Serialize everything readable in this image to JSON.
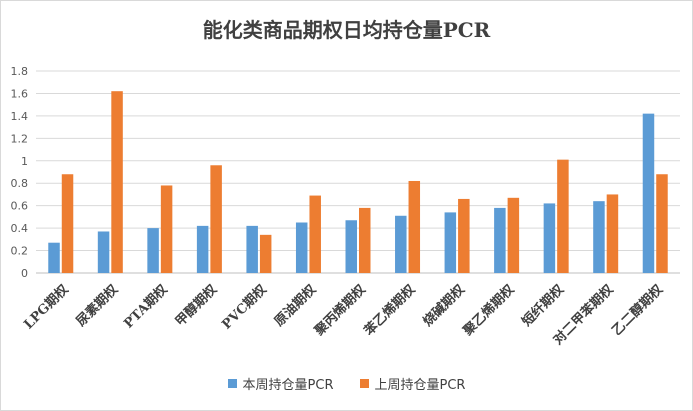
{
  "chart_data": {
    "type": "bar",
    "title": "能化类商品期权日均持仓量PCR",
    "categories": [
      "LPG期权",
      "尿素期权",
      "PTA期权",
      "甲醇期权",
      "PVC期权",
      "原油期权",
      "聚丙烯期权",
      "苯乙烯期权",
      "烧碱期权",
      "聚乙烯期权",
      "短纤期权",
      "对二甲苯期权",
      "乙二醇期权"
    ],
    "series": [
      {
        "name": "本周持仓量PCR",
        "color": "#5b9bd5",
        "values": [
          0.27,
          0.37,
          0.4,
          0.42,
          0.42,
          0.45,
          0.47,
          0.51,
          0.54,
          0.58,
          0.62,
          0.64,
          1.42
        ]
      },
      {
        "name": "上周持仓量PCR",
        "color": "#ed7d31",
        "values": [
          0.88,
          1.62,
          0.78,
          0.96,
          0.34,
          0.69,
          0.58,
          0.82,
          0.66,
          0.67,
          1.01,
          0.7,
          0.88
        ]
      }
    ],
    "ylim": [
      0,
      1.8
    ],
    "yticks": [
      "0",
      "0.2",
      "0.4",
      "0.6",
      "0.8",
      "1",
      "1.2",
      "1.4",
      "1.6",
      "1.8"
    ],
    "grid": true,
    "legend": "bottom"
  }
}
